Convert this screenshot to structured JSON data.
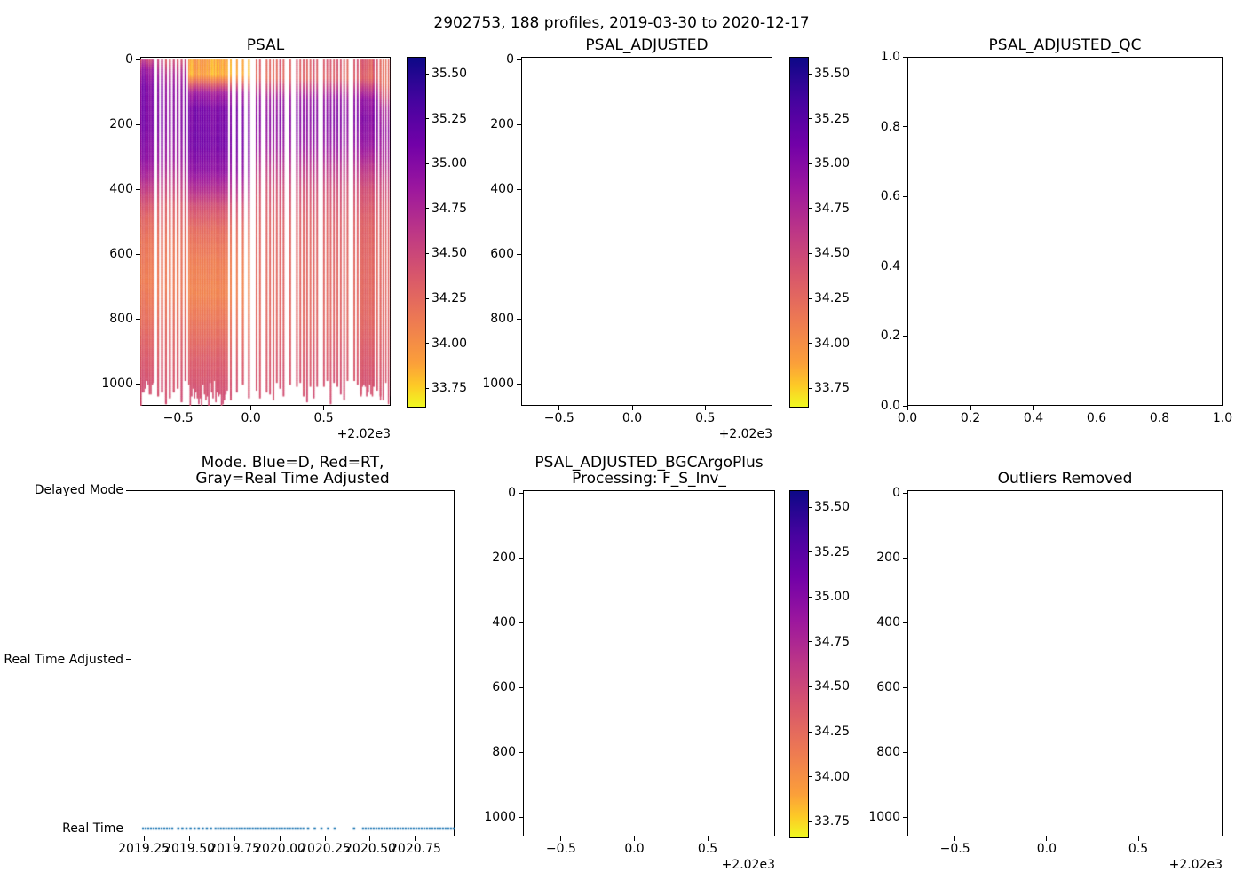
{
  "suptitle": "2902753, 188 profiles, 2019-03-30 to 2020-12-17",
  "colors": {
    "background": "#ffffff",
    "axis": "#000000",
    "scatter_dot": "#1f77b4",
    "plasma_stops": [
      [
        0,
        "#0d0887"
      ],
      [
        0.125,
        "#46039f"
      ],
      [
        0.25,
        "#7201a8"
      ],
      [
        0.375,
        "#9c179e"
      ],
      [
        0.5,
        "#bd3786"
      ],
      [
        0.625,
        "#d8576b"
      ],
      [
        0.75,
        "#ed7953"
      ],
      [
        0.875,
        "#fb9f3a"
      ],
      [
        0.94,
        "#fdca26"
      ],
      [
        1,
        "#f0f921"
      ]
    ]
  },
  "chart_data": [
    {
      "id": "psal",
      "type": "heatmap",
      "title": "PSAL",
      "xlim": [
        2019.24,
        2020.96
      ],
      "xticks": [
        {
          "v": 2019.5,
          "label": "−0.5"
        },
        {
          "v": 2020.0,
          "label": "0.0"
        },
        {
          "v": 2020.5,
          "label": "0.5"
        }
      ],
      "x_offset_label": "+2.02e3",
      "yticks": [
        {
          "v": 0,
          "label": "0"
        },
        {
          "v": 200,
          "label": "200"
        },
        {
          "v": 400,
          "label": "400"
        },
        {
          "v": 600,
          "label": "600"
        },
        {
          "v": 800,
          "label": "800"
        },
        {
          "v": 1000,
          "label": "1000"
        }
      ],
      "colorbar": {
        "vmin": 33.65,
        "vmax": 35.6,
        "ticks": [
          {
            "v": 35.5,
            "label": "35.50"
          },
          {
            "v": 35.25,
            "label": "35.25"
          },
          {
            "v": 35.0,
            "label": "35.00"
          },
          {
            "v": 34.75,
            "label": "34.75"
          },
          {
            "v": 34.5,
            "label": "34.50"
          },
          {
            "v": 34.25,
            "label": "34.25"
          },
          {
            "v": 34.0,
            "label": "34.00"
          },
          {
            "v": 33.75,
            "label": "33.75"
          }
        ]
      },
      "section": {
        "depth_max_range": [
          985,
          1065
        ],
        "eras": {
          "A": [
            [
              0,
              34.55
            ],
            [
              30,
              34.85
            ],
            [
              80,
              35.02
            ],
            [
              200,
              35.05
            ],
            [
              300,
              34.95
            ],
            [
              360,
              34.75
            ],
            [
              420,
              34.5
            ],
            [
              480,
              34.3
            ],
            [
              560,
              34.18
            ],
            [
              680,
              34.12
            ],
            [
              800,
              34.22
            ],
            [
              900,
              34.35
            ],
            [
              1000,
              34.44
            ],
            [
              1060,
              34.46
            ]
          ],
          "A2": [
            [
              0,
              34.45
            ],
            [
              40,
              34.75
            ],
            [
              90,
              34.95
            ],
            [
              200,
              35.0
            ],
            [
              300,
              34.88
            ],
            [
              380,
              34.6
            ],
            [
              450,
              34.35
            ],
            [
              560,
              34.2
            ],
            [
              700,
              34.15
            ],
            [
              850,
              34.3
            ],
            [
              1000,
              34.43
            ],
            [
              1060,
              34.45
            ]
          ],
          "B": [
            [
              0,
              33.92
            ],
            [
              45,
              33.88
            ],
            [
              70,
              34.3
            ],
            [
              100,
              34.85
            ],
            [
              150,
              35.08
            ],
            [
              260,
              35.1
            ],
            [
              340,
              34.95
            ],
            [
              400,
              34.7
            ],
            [
              450,
              34.45
            ],
            [
              520,
              34.25
            ],
            [
              620,
              34.12
            ],
            [
              720,
              34.08
            ],
            [
              820,
              34.2
            ],
            [
              920,
              34.35
            ],
            [
              1010,
              34.43
            ],
            [
              1060,
              34.46
            ]
          ],
          "C": [
            [
              0,
              34.35
            ],
            [
              55,
              34.3
            ],
            [
              85,
              34.6
            ],
            [
              120,
              34.9
            ],
            [
              180,
              35.0
            ],
            [
              260,
              34.9
            ],
            [
              330,
              34.65
            ],
            [
              400,
              34.45
            ],
            [
              500,
              34.32
            ],
            [
              650,
              34.27
            ],
            [
              800,
              34.28
            ],
            [
              920,
              34.38
            ],
            [
              1060,
              34.45
            ]
          ],
          "C2": [
            [
              0,
              34.32
            ],
            [
              70,
              34.28
            ],
            [
              110,
              34.5
            ],
            [
              150,
              34.82
            ],
            [
              220,
              34.95
            ],
            [
              300,
              34.8
            ],
            [
              380,
              34.55
            ],
            [
              470,
              34.38
            ],
            [
              600,
              34.3
            ],
            [
              800,
              34.3
            ],
            [
              950,
              34.4
            ],
            [
              1060,
              34.45
            ]
          ]
        },
        "segments": [
          {
            "t0": 2019.24,
            "t1": 2019.335,
            "w": 1.6,
            "gap": 0,
            "era": "A"
          },
          {
            "t0": 2019.356,
            "t1": 2019.557,
            "w": 2.2,
            "gap": 2.2,
            "era": "A2"
          },
          {
            "t0": 2019.569,
            "t1": 2019.835,
            "w": 1.6,
            "gap": 0,
            "era": "B"
          },
          {
            "t0": 2019.856,
            "t1": 2019.984,
            "w": 2.0,
            "gap": 4.8,
            "era": "B"
          },
          {
            "t0": 2020.033,
            "t1": 2020.234,
            "w": 1.9,
            "gap": 1.9,
            "era": "C",
            "dropout": 0.1
          },
          {
            "t0": 2020.264,
            "t1": 2020.752,
            "w": 1.9,
            "gap": 1.9,
            "era": "C",
            "dropout": 0.1
          },
          {
            "t0": 2020.752,
            "t1": 2020.832,
            "w": 1.6,
            "gap": 0,
            "era": "C"
          },
          {
            "t0": 2020.838,
            "t1": 2020.886,
            "w": 1.9,
            "gap": 1.9,
            "era": "C"
          },
          {
            "t0": 2020.886,
            "t1": 2020.96,
            "w": 1.5,
            "gap": 1.5,
            "era": "C2"
          }
        ]
      }
    },
    {
      "id": "psal_adjusted",
      "type": "heatmap",
      "empty": true,
      "title": "PSAL_ADJUSTED",
      "xlim": [
        2019.24,
        2020.96
      ],
      "xticks": [
        {
          "v": 2019.5,
          "label": "−0.5"
        },
        {
          "v": 2020.0,
          "label": "0.0"
        },
        {
          "v": 2020.5,
          "label": "0.5"
        }
      ],
      "x_offset_label": "+2.02e3",
      "yticks": [
        {
          "v": 0,
          "label": "0"
        },
        {
          "v": 200,
          "label": "200"
        },
        {
          "v": 400,
          "label": "400"
        },
        {
          "v": 600,
          "label": "600"
        },
        {
          "v": 800,
          "label": "800"
        },
        {
          "v": 1000,
          "label": "1000"
        }
      ],
      "colorbar": {
        "vmin": 33.65,
        "vmax": 35.6,
        "ticks": [
          {
            "v": 35.5,
            "label": "35.50"
          },
          {
            "v": 35.25,
            "label": "35.25"
          },
          {
            "v": 35.0,
            "label": "35.00"
          },
          {
            "v": 34.75,
            "label": "34.75"
          },
          {
            "v": 34.5,
            "label": "34.50"
          },
          {
            "v": 34.25,
            "label": "34.25"
          },
          {
            "v": 34.0,
            "label": "34.00"
          },
          {
            "v": 33.75,
            "label": "33.75"
          }
        ]
      }
    },
    {
      "id": "psal_adjusted_qc",
      "type": "empty",
      "title": "PSAL_ADJUSTED_QC",
      "xlim": [
        0,
        1
      ],
      "xticks": [
        {
          "v": 0.0,
          "label": "0.0"
        },
        {
          "v": 0.2,
          "label": "0.2"
        },
        {
          "v": 0.4,
          "label": "0.4"
        },
        {
          "v": 0.6,
          "label": "0.6"
        },
        {
          "v": 0.8,
          "label": "0.8"
        },
        {
          "v": 1.0,
          "label": "1.0"
        }
      ],
      "yticks": [
        {
          "v": 1.0,
          "label": "1.0"
        },
        {
          "v": 0.8,
          "label": "0.8"
        },
        {
          "v": 0.6,
          "label": "0.6"
        },
        {
          "v": 0.4,
          "label": "0.4"
        },
        {
          "v": 0.2,
          "label": "0.2"
        },
        {
          "v": 0.0,
          "label": "0.0"
        }
      ]
    },
    {
      "id": "mode",
      "type": "scatter",
      "title_lines": [
        "Mode. Blue=D, Red=RT,",
        "Gray=Real Time Adjusted"
      ],
      "xlim": [
        2019.176,
        2020.966
      ],
      "xticks": [
        {
          "v": 2019.25,
          "label": "2019.25"
        },
        {
          "v": 2019.5,
          "label": "2019.50"
        },
        {
          "v": 2019.75,
          "label": "2019.75"
        },
        {
          "v": 2020.0,
          "label": "2020.00"
        },
        {
          "v": 2020.25,
          "label": "2020.25"
        },
        {
          "v": 2020.5,
          "label": "2020.50"
        },
        {
          "v": 2020.75,
          "label": "2020.75"
        }
      ],
      "ycats": [
        {
          "v": 2,
          "label": "Delayed Mode"
        },
        {
          "v": 1,
          "label": "Real Time Adjusted"
        },
        {
          "v": 0,
          "label": "Real Time"
        }
      ],
      "series": {
        "label": "Real Time",
        "color": "#1f77b4",
        "y": 0,
        "segments": [
          {
            "style": "dense",
            "t0": 2019.24,
            "t1": 2019.415
          },
          {
            "style": "dots",
            "t0": 2019.44,
            "t1": 2019.62,
            "n": 9
          },
          {
            "style": "dense",
            "t0": 2019.64,
            "t1": 2020.137
          },
          {
            "style": "dots",
            "t0": 2020.157,
            "t1": 2020.304,
            "n": 5
          },
          {
            "style": "dots",
            "t0": 2020.411,
            "t1": 2020.411,
            "n": 1
          },
          {
            "style": "dense",
            "t0": 2020.455,
            "t1": 2020.965
          }
        ]
      }
    },
    {
      "id": "psal_adjusted_bgc",
      "type": "heatmap",
      "empty": true,
      "title_lines": [
        "PSAL_ADJUSTED_BGCArgoPlus",
        "Processing: F_S_Inv_"
      ],
      "xlim": [
        2019.24,
        2020.96
      ],
      "xticks": [
        {
          "v": 2019.5,
          "label": "−0.5"
        },
        {
          "v": 2020.0,
          "label": "0.0"
        },
        {
          "v": 2020.5,
          "label": "0.5"
        }
      ],
      "x_offset_label": "+2.02e3",
      "yticks": [
        {
          "v": 0,
          "label": "0"
        },
        {
          "v": 200,
          "label": "200"
        },
        {
          "v": 400,
          "label": "400"
        },
        {
          "v": 600,
          "label": "600"
        },
        {
          "v": 800,
          "label": "800"
        },
        {
          "v": 1000,
          "label": "1000"
        }
      ],
      "colorbar": {
        "vmin": 33.65,
        "vmax": 35.6,
        "ticks": [
          {
            "v": 35.5,
            "label": "35.50"
          },
          {
            "v": 35.25,
            "label": "35.25"
          },
          {
            "v": 35.0,
            "label": "35.00"
          },
          {
            "v": 34.75,
            "label": "34.75"
          },
          {
            "v": 34.5,
            "label": "34.50"
          },
          {
            "v": 34.25,
            "label": "34.25"
          },
          {
            "v": 34.0,
            "label": "34.00"
          },
          {
            "v": 33.75,
            "label": "33.75"
          }
        ]
      }
    },
    {
      "id": "outliers_removed",
      "type": "empty",
      "title": "Outliers Removed",
      "xlim": [
        2019.24,
        2020.96
      ],
      "xticks": [
        {
          "v": 2019.5,
          "label": "−0.5"
        },
        {
          "v": 2020.0,
          "label": "0.0"
        },
        {
          "v": 2020.5,
          "label": "0.5"
        }
      ],
      "x_offset_label": "+2.02e3",
      "yticks": [
        {
          "v": 0,
          "label": "0"
        },
        {
          "v": 200,
          "label": "200"
        },
        {
          "v": 400,
          "label": "400"
        },
        {
          "v": 600,
          "label": "600"
        },
        {
          "v": 800,
          "label": "800"
        },
        {
          "v": 1000,
          "label": "1000"
        }
      ]
    }
  ]
}
